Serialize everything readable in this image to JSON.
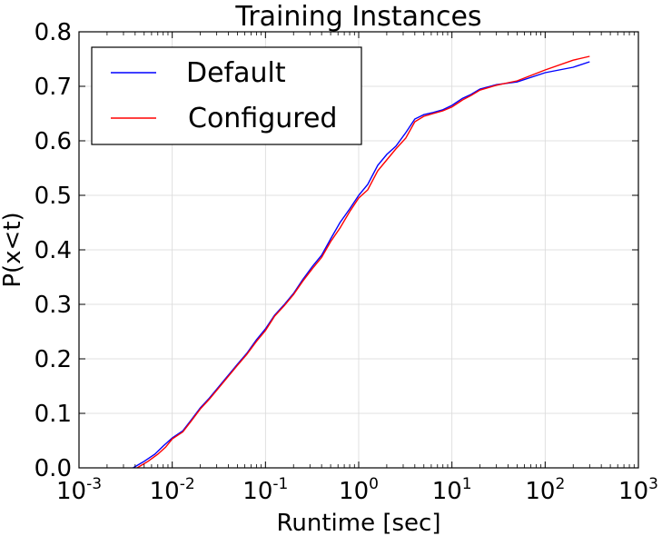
{
  "chart_data": {
    "type": "line",
    "title": "Training Instances",
    "xlabel": "Runtime [sec]",
    "ylabel": "P(x<t)",
    "xscale": "log",
    "xlim": [
      0.001,
      1000
    ],
    "ylim": [
      0.0,
      0.8
    ],
    "x_ticks": [
      {
        "value": 0.001,
        "base": "10",
        "exp": "-3"
      },
      {
        "value": 0.01,
        "base": "10",
        "exp": "-2"
      },
      {
        "value": 0.1,
        "base": "10",
        "exp": "-1"
      },
      {
        "value": 1,
        "base": "10",
        "exp": "0"
      },
      {
        "value": 10,
        "base": "10",
        "exp": "1"
      },
      {
        "value": 100,
        "base": "10",
        "exp": "2"
      },
      {
        "value": 1000,
        "base": "10",
        "exp": "3"
      }
    ],
    "y_ticks": [
      {
        "value": 0.0,
        "label": "0.0"
      },
      {
        "value": 0.1,
        "label": "0.1"
      },
      {
        "value": 0.2,
        "label": "0.2"
      },
      {
        "value": 0.3,
        "label": "0.3"
      },
      {
        "value": 0.4,
        "label": "0.4"
      },
      {
        "value": 0.5,
        "label": "0.5"
      },
      {
        "value": 0.6,
        "label": "0.6"
      },
      {
        "value": 0.7,
        "label": "0.7"
      },
      {
        "value": 0.8,
        "label": "0.8"
      }
    ],
    "grid": true,
    "legend_position": "top-left",
    "series": [
      {
        "name": "Default",
        "color": "#0000ff",
        "x": [
          0.0038,
          0.005,
          0.0065,
          0.008,
          0.01,
          0.013,
          0.016,
          0.02,
          0.025,
          0.032,
          0.04,
          0.05,
          0.063,
          0.08,
          0.1,
          0.125,
          0.16,
          0.2,
          0.25,
          0.32,
          0.4,
          0.5,
          0.63,
          0.8,
          1.0,
          1.25,
          1.6,
          2.0,
          2.5,
          3.2,
          4.0,
          5.0,
          6.3,
          8.0,
          10,
          13,
          16,
          20,
          30,
          50,
          100,
          200,
          300
        ],
        "y": [
          0.0,
          0.012,
          0.025,
          0.04,
          0.055,
          0.068,
          0.088,
          0.11,
          0.128,
          0.15,
          0.17,
          0.19,
          0.21,
          0.235,
          0.255,
          0.28,
          0.3,
          0.32,
          0.345,
          0.37,
          0.39,
          0.42,
          0.45,
          0.475,
          0.5,
          0.52,
          0.555,
          0.575,
          0.59,
          0.615,
          0.64,
          0.648,
          0.652,
          0.657,
          0.665,
          0.678,
          0.685,
          0.695,
          0.703,
          0.708,
          0.725,
          0.735,
          0.745
        ]
      },
      {
        "name": "Configured",
        "color": "#ff0000",
        "x": [
          0.0042,
          0.0055,
          0.007,
          0.0085,
          0.01,
          0.013,
          0.016,
          0.02,
          0.025,
          0.032,
          0.04,
          0.05,
          0.063,
          0.08,
          0.1,
          0.125,
          0.16,
          0.2,
          0.25,
          0.32,
          0.4,
          0.5,
          0.63,
          0.8,
          1.0,
          1.25,
          1.6,
          2.0,
          2.5,
          3.2,
          4.0,
          5.0,
          6.3,
          8.0,
          10,
          13,
          16,
          20,
          30,
          50,
          100,
          200,
          300
        ],
        "y": [
          0.0,
          0.012,
          0.025,
          0.038,
          0.053,
          0.066,
          0.086,
          0.108,
          0.126,
          0.148,
          0.168,
          0.188,
          0.208,
          0.232,
          0.252,
          0.278,
          0.298,
          0.318,
          0.342,
          0.366,
          0.386,
          0.415,
          0.44,
          0.47,
          0.495,
          0.51,
          0.545,
          0.565,
          0.585,
          0.605,
          0.635,
          0.645,
          0.65,
          0.655,
          0.662,
          0.675,
          0.683,
          0.693,
          0.702,
          0.71,
          0.73,
          0.748,
          0.755
        ]
      }
    ]
  }
}
